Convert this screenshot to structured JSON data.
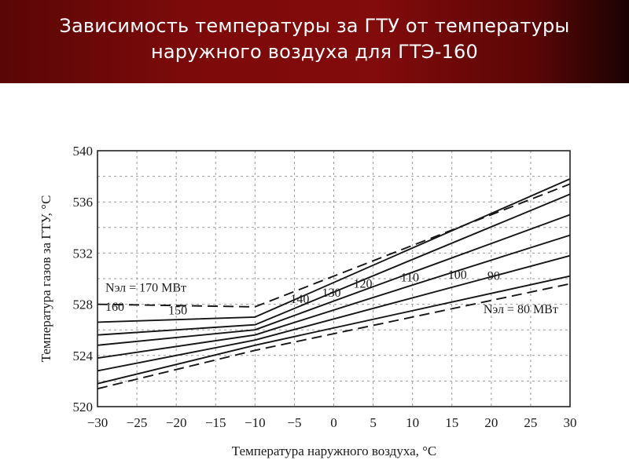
{
  "slide": {
    "title": "Зависимость температуры за ГТУ от температуры наружного воздуха для ГТЭ-160"
  },
  "chart_data": {
    "type": "line",
    "xlabel": "Температура наружного воздуха, °С",
    "ylabel": "Температура газов за ГТУ, °С",
    "xlim": [
      -30,
      30
    ],
    "ylim": [
      520,
      540
    ],
    "xticks": [
      -30,
      -25,
      -20,
      -15,
      -10,
      -5,
      0,
      5,
      10,
      15,
      20,
      25,
      30
    ],
    "yticks": [
      520,
      524,
      528,
      532,
      536,
      540
    ],
    "grid": true,
    "series": [
      {
        "name": "160",
        "style": "solid",
        "x": [
          -30,
          -10,
          30
        ],
        "y": [
          526.6,
          527.0,
          537.8
        ]
      },
      {
        "name": "150",
        "style": "solid",
        "x": [
          -30,
          -10,
          30
        ],
        "y": [
          525.6,
          526.4,
          536.6
        ]
      },
      {
        "name": "140",
        "style": "solid",
        "x": [
          -30,
          -10,
          30
        ],
        "y": [
          524.8,
          526.0,
          535.0
        ]
      },
      {
        "name": "130",
        "style": "solid",
        "x": [
          -30,
          -10,
          30
        ],
        "y": [
          523.8,
          525.6,
          533.4
        ]
      },
      {
        "name": "120",
        "style": "solid",
        "x": [
          -30,
          -10,
          30
        ],
        "y": [
          522.8,
          525.2,
          531.8
        ]
      },
      {
        "name": "110",
        "style": "solid",
        "x": [
          -30,
          -10,
          30
        ],
        "y": [
          521.8,
          524.8,
          530.2
        ]
      },
      {
        "name": "",
        "style": "dashed",
        "x": [
          -30,
          -10,
          30
        ],
        "y": [
          528.0,
          527.8,
          537.4
        ]
      },
      {
        "name": "",
        "style": "dashed",
        "x": [
          -30,
          -10,
          30
        ],
        "y": [
          521.4,
          524.4,
          529.6
        ]
      }
    ],
    "annotations": [
      {
        "text": "Nэл = 170 МВт",
        "x": -29,
        "y": 529.0
      },
      {
        "text": "160",
        "x": -29,
        "y": 527.5
      },
      {
        "text": "150",
        "x": -21,
        "y": 527.2
      },
      {
        "text": "140",
        "x": -5.5,
        "y": 528.1
      },
      {
        "text": "130",
        "x": -1.5,
        "y": 528.6
      },
      {
        "text": "120",
        "x": 2.5,
        "y": 529.3
      },
      {
        "text": "110",
        "x": 8.5,
        "y": 529.8
      },
      {
        "text": "100",
        "x": 14.5,
        "y": 530.0
      },
      {
        "text": "90",
        "x": 19.5,
        "y": 529.9
      },
      {
        "text": "Nэл = 80 МВт",
        "x": 19,
        "y": 527.3
      }
    ]
  }
}
